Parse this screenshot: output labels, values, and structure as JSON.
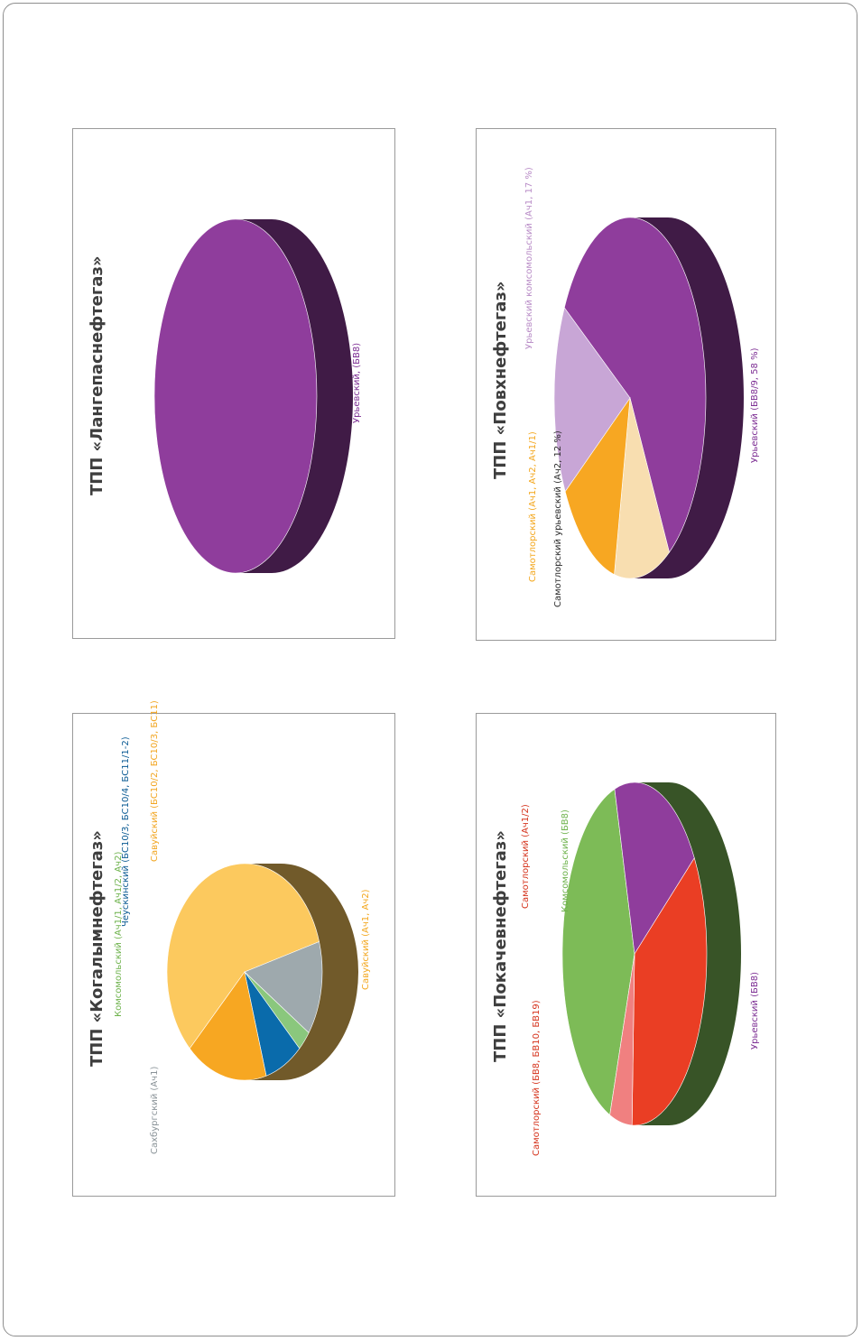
{
  "chart_data": [
    {
      "type": "pie",
      "title": "ТПП «Когалымнефтегаз»",
      "slices": [
        {
          "label": "Савуйский (Ач1, Ач2)",
          "value": 58,
          "color": "#fcc95e"
        },
        {
          "label": "Сахбургский (Ач1)",
          "value": 14,
          "color": "#9ea9ad"
        },
        {
          "label": "Комсомольский (Ач1/1, Ач1/2, Ач2)",
          "value": 3,
          "color": "#8ac77d"
        },
        {
          "label": "Чеускинский (БС10/3, БС10/4, БС11/1-2)",
          "value": 8,
          "color": "#0a6bab"
        },
        {
          "label": "Савуйский (БС10/2, БС10/3, БС11)",
          "value": 17,
          "color": "#f7a722"
        }
      ]
    },
    {
      "type": "pie",
      "title": "ТПП «Лангепаснефтегаз»",
      "slices": [
        {
          "label": "Урьевский, (БВ8)",
          "value": 100,
          "color": "#8f3d9c"
        }
      ]
    },
    {
      "type": "pie",
      "title": "ТПП «Покачевнефтегаз»",
      "slices": [
        {
          "label": "Комсомольский (БВ8)",
          "value": 40,
          "color": "#7dbb57"
        },
        {
          "label": "Урьевский (БВ8)",
          "value": 20,
          "color": "#8f3d9c"
        },
        {
          "label": "Самотлорский (БВ8, БВ10, БВ19)",
          "value": 35,
          "color": "#ea3e24"
        },
        {
          "label": "Самотлорский (Ач1/2)",
          "value": 5,
          "color": "#f08080"
        }
      ]
    },
    {
      "type": "pie",
      "title": "ТПП «Повхнефтегаз»",
      "slices": [
        {
          "label": "Урьевский (БВ8/9, 58 %)",
          "value": 58,
          "color": "#8f3d9c"
        },
        {
          "label": "Самотлорский урьевский (Ач2, 12 %)",
          "value": 12,
          "color": "#f8deb0"
        },
        {
          "label": "Самотлорский (Ач1, Ач2, Ач1/1)",
          "value": 13,
          "color": "#f7a722"
        },
        {
          "label": "Урьевский комсомольский (Ач1, 17 %)",
          "value": 17,
          "color": "#c8a6d6"
        }
      ]
    }
  ],
  "colors": {
    "frame": "#8e8e8e",
    "panel_border": "#9a9a9a"
  }
}
